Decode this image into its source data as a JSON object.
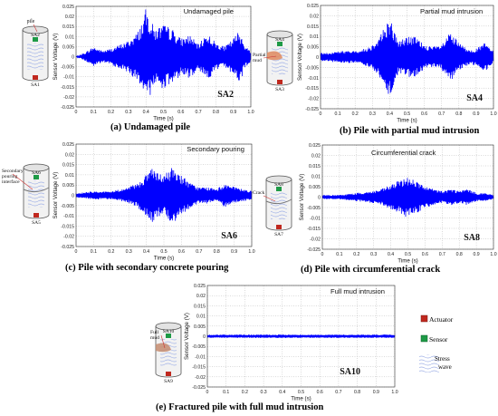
{
  "tick_labels": {
    "x": [
      "0",
      "0.1",
      "0.2",
      "0.3",
      "0.4",
      "0.5",
      "0.6",
      "0.7",
      "0.8",
      "0.9",
      "1.0"
    ],
    "y": [
      "0.025",
      "0.02",
      "0.015",
      "0.01",
      "0.005",
      "0",
      "-0.005",
      "-0.01",
      "-0.015",
      "-0.02",
      "-0.025"
    ]
  },
  "legend": {
    "actuator": "Actuator",
    "sensor": "Sensor",
    "stress_wave": "Stress wave"
  },
  "colors": {
    "signal": "#0000FF",
    "actuator": "#C0281E",
    "sensor": "#1E9A46",
    "wave": "#B8C4EC"
  },
  "panels": [
    {
      "caption": "(a) Undamaged pile",
      "insetTitle": "Undamaged pile",
      "code": "SA2",
      "diagram": {
        "top": "pile",
        "sensor": "SA2",
        "actuator": "SA1",
        "side": ""
      }
    },
    {
      "caption": "(b)  Pile with partial mud intrusion",
      "insetTitle": "Partial mud intrusion",
      "code": "SA4",
      "diagram": {
        "top": "",
        "sensor": "SA4",
        "actuator": "SA3",
        "side": "Partial mud"
      }
    },
    {
      "caption": "(c) Pile with secondary concrete pouring",
      "insetTitle": "Secondary pouring",
      "code": "SA6",
      "diagram": {
        "top": "",
        "sensor": "SA6",
        "actuator": "SA5",
        "side": "Secondary pouring interface"
      }
    },
    {
      "caption": "(d)  Pile with circumferential crack",
      "insetTitle": "Circumferential crack",
      "code": "SA8",
      "diagram": {
        "top": "",
        "sensor": "SA8",
        "actuator": "SA7",
        "side": "Crack"
      }
    },
    {
      "caption": "(e)  Fractured pile with full mud intrusion",
      "insetTitle": "Full mud intrusion",
      "code": "SA10",
      "diagram": {
        "top": "",
        "sensor": "SA10",
        "actuator": "SA9",
        "side": "Full mud"
      }
    }
  ],
  "chart_data": [
    {
      "type": "line",
      "xlabel": "Time (s)",
      "ylabel": "Sensor Voltage (V)",
      "xlim": [
        0,
        1.0
      ],
      "ylim": [
        -0.025,
        0.025
      ],
      "grid": true,
      "series": [
        {
          "envelope": {
            "t": [
              0,
              0.05,
              0.1,
              0.15,
              0.2,
              0.25,
              0.3,
              0.35,
              0.38,
              0.4,
              0.42,
              0.45,
              0.5,
              0.55,
              0.6,
              0.65,
              0.7,
              0.75,
              0.8,
              0.85,
              0.9,
              0.93,
              0.95,
              0.97,
              1.0
            ],
            "amp": [
              0,
              0.002,
              0.005,
              0.003,
              0.004,
              0.006,
              0.008,
              0.012,
              0.018,
              0.024,
              0.02,
              0.014,
              0.016,
              0.014,
              0.009,
              0.011,
              0.006,
              0.012,
              0.007,
              0.005,
              0.009,
              0.013,
              0.01,
              0.005,
              0.003
            ]
          }
        }
      ]
    },
    {
      "type": "line",
      "xlabel": "Time (s)",
      "ylabel": "Sensor Voltage (V)",
      "xlim": [
        0,
        1.0
      ],
      "ylim": [
        -0.025,
        0.025
      ],
      "grid": true,
      "series": [
        {
          "envelope": {
            "t": [
              0,
              0.05,
              0.1,
              0.15,
              0.2,
              0.25,
              0.3,
              0.35,
              0.38,
              0.4,
              0.42,
              0.45,
              0.5,
              0.55,
              0.6,
              0.65,
              0.7,
              0.75,
              0.8,
              0.85,
              0.9,
              0.95,
              1.0
            ],
            "amp": [
              0.002,
              0.002,
              0.003,
              0.003,
              0.003,
              0.004,
              0.006,
              0.012,
              0.016,
              0.02,
              0.014,
              0.008,
              0.01,
              0.01,
              0.006,
              0.005,
              0.006,
              0.012,
              0.007,
              0.004,
              0.004,
              0.007,
              0.003
            ]
          }
        }
      ]
    },
    {
      "type": "line",
      "xlabel": "Time (s)",
      "ylabel": "Sensor Voltage (V)",
      "xlim": [
        0,
        1.0
      ],
      "ylim": [
        -0.025,
        0.025
      ],
      "grid": true,
      "series": [
        {
          "envelope": {
            "t": [
              0,
              0.1,
              0.2,
              0.3,
              0.35,
              0.4,
              0.43,
              0.45,
              0.5,
              0.55,
              0.6,
              0.65,
              0.7,
              0.75,
              0.8,
              0.85,
              0.9,
              0.95,
              1.0
            ],
            "amp": [
              0.001,
              0.002,
              0.002,
              0.004,
              0.006,
              0.01,
              0.015,
              0.011,
              0.01,
              0.014,
              0.01,
              0.006,
              0.004,
              0.004,
              0.003,
              0.006,
              0.004,
              0.003,
              0.002
            ]
          }
        }
      ]
    },
    {
      "type": "line",
      "xlabel": "Time (s)",
      "ylabel": "Sensor Voltage (V)",
      "xlim": [
        0,
        1.0
      ],
      "ylim": [
        -0.025,
        0.025
      ],
      "grid": true,
      "series": [
        {
          "envelope": {
            "t": [
              0,
              0.1,
              0.2,
              0.3,
              0.35,
              0.4,
              0.45,
              0.5,
              0.55,
              0.6,
              0.65,
              0.7,
              0.75,
              0.8,
              0.85,
              0.9,
              0.95,
              1.0
            ],
            "amp": [
              0.001,
              0.001,
              0.002,
              0.003,
              0.004,
              0.006,
              0.008,
              0.01,
              0.008,
              0.005,
              0.004,
              0.003,
              0.004,
              0.003,
              0.004,
              0.002,
              0.002,
              0.001
            ]
          }
        }
      ]
    },
    {
      "type": "line",
      "xlabel": "Time (s)",
      "ylabel": "Sensor Voltage (V)",
      "xlim": [
        0,
        1.0
      ],
      "ylim": [
        -0.025,
        0.025
      ],
      "grid": true,
      "series": [
        {
          "envelope": {
            "t": [
              0,
              1.0
            ],
            "amp": [
              0.0008,
              0.0008
            ]
          }
        }
      ]
    }
  ]
}
